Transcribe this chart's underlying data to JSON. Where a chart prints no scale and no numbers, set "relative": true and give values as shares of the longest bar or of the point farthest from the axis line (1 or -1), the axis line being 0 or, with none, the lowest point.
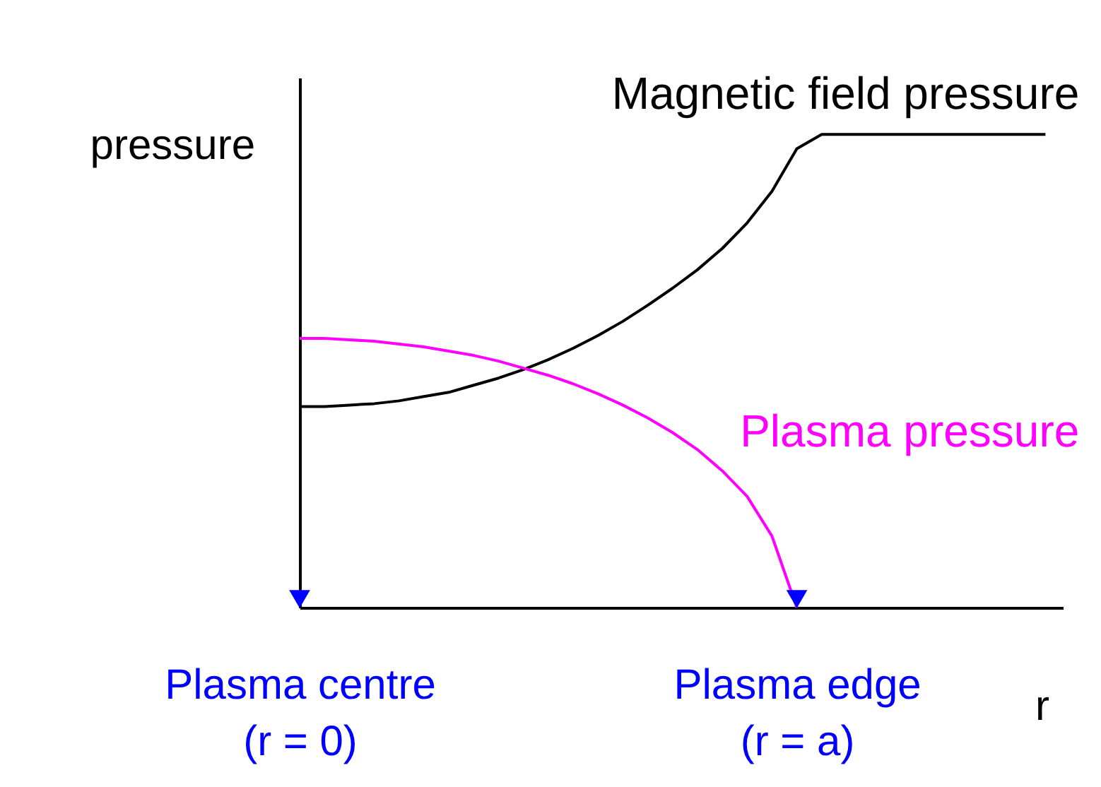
{
  "chart_data": {
    "type": "line",
    "relative": true,
    "xlabel": "r",
    "ylabel": "pressure",
    "grid": false,
    "marker": "none",
    "line_style": "solid",
    "categories": [
      "Plasma centre\n(r = 0)",
      null,
      null,
      null,
      null,
      null,
      null,
      null,
      null,
      null,
      null,
      null,
      null,
      null,
      null,
      null,
      null,
      null,
      null,
      null,
      "Plasma edge\n(r = a)",
      null,
      null,
      null,
      null,
      null,
      null,
      null,
      null,
      null,
      null
    ],
    "series": [
      {
        "name": "Magnetic field pressure",
        "color": "#000000",
        "values": [
          0.425,
          0.425,
          0.428,
          0.431,
          0.437,
          0.446,
          0.455,
          0.47,
          0.485,
          0.503,
          0.524,
          0.548,
          0.575,
          0.605,
          0.639,
          0.675,
          0.714,
          0.759,
          0.813,
          0.88,
          0.97,
          1,
          1,
          1,
          1,
          1,
          1,
          1,
          1,
          1,
          1
        ]
      },
      {
        "name": "Plasma pressure",
        "color": "#ff00ff",
        "values": [
          0.569,
          0.569,
          0.566,
          0.563,
          0.557,
          0.551,
          0.542,
          0.533,
          0.521,
          0.506,
          0.491,
          0.473,
          0.452,
          0.428,
          0.401,
          0.37,
          0.334,
          0.289,
          0.235,
          0.151,
          0,
          null,
          null,
          null,
          null,
          null,
          null,
          null,
          null,
          null,
          null
        ]
      }
    ]
  }
}
